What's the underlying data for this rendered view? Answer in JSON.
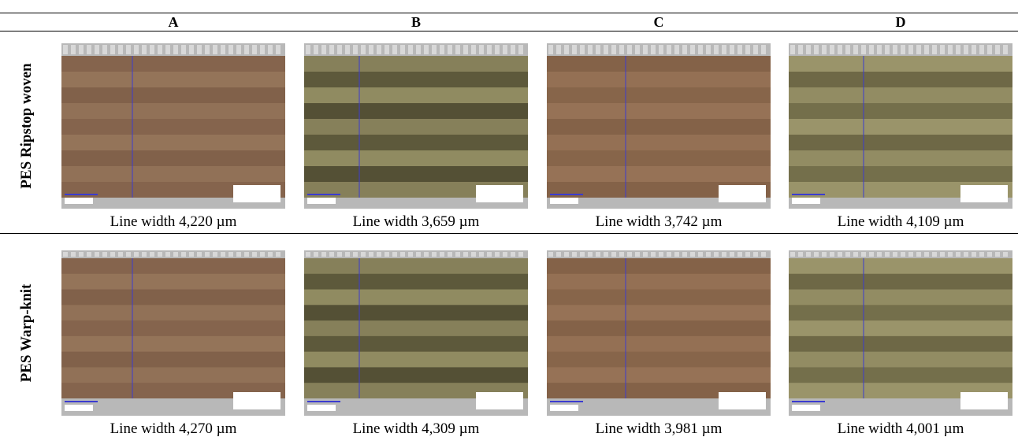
{
  "table": {
    "columns": [
      "A",
      "B",
      "C",
      "D"
    ],
    "rows": [
      {
        "label": "PES Ripstop woven",
        "captions": [
          "Line width 4,220 µm",
          "Line width 3,659 µm",
          "Line width 3,742 µm",
          "Line width 4,109 µm"
        ]
      },
      {
        "label": "PES Warp-knit",
        "captions": [
          "Line width 4,270 µm",
          "Line width 4,309 µm",
          "Line width 3,981 µm",
          "Line width 4,001 µm"
        ]
      }
    ]
  }
}
